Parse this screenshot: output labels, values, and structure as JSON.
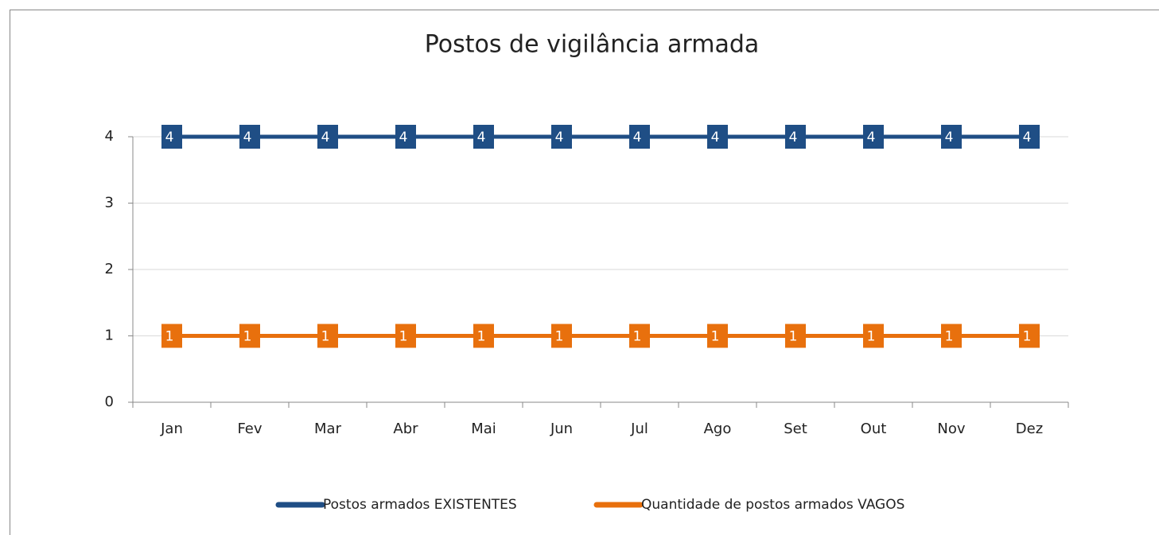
{
  "chart_data": {
    "type": "line",
    "title": "Postos de vigilância armada",
    "categories": [
      "Jan",
      "Fev",
      "Mar",
      "Abr",
      "Mai",
      "Jun",
      "Jul",
      "Ago",
      "Set",
      "Out",
      "Nov",
      "Dez"
    ],
    "series": [
      {
        "name": "Postos armados EXISTENTES",
        "color": "#1f4e85",
        "values": [
          4,
          4,
          4,
          4,
          4,
          4,
          4,
          4,
          4,
          4,
          4,
          4
        ]
      },
      {
        "name": "Quantidade de postos armados VAGOS",
        "color": "#e8700d",
        "values": [
          1,
          1,
          1,
          1,
          1,
          1,
          1,
          1,
          1,
          1,
          1,
          1
        ]
      }
    ],
    "ylim": [
      0,
      4
    ],
    "yticks": [
      0,
      1,
      2,
      3,
      4
    ],
    "grid": true,
    "legend": "bottom"
  }
}
